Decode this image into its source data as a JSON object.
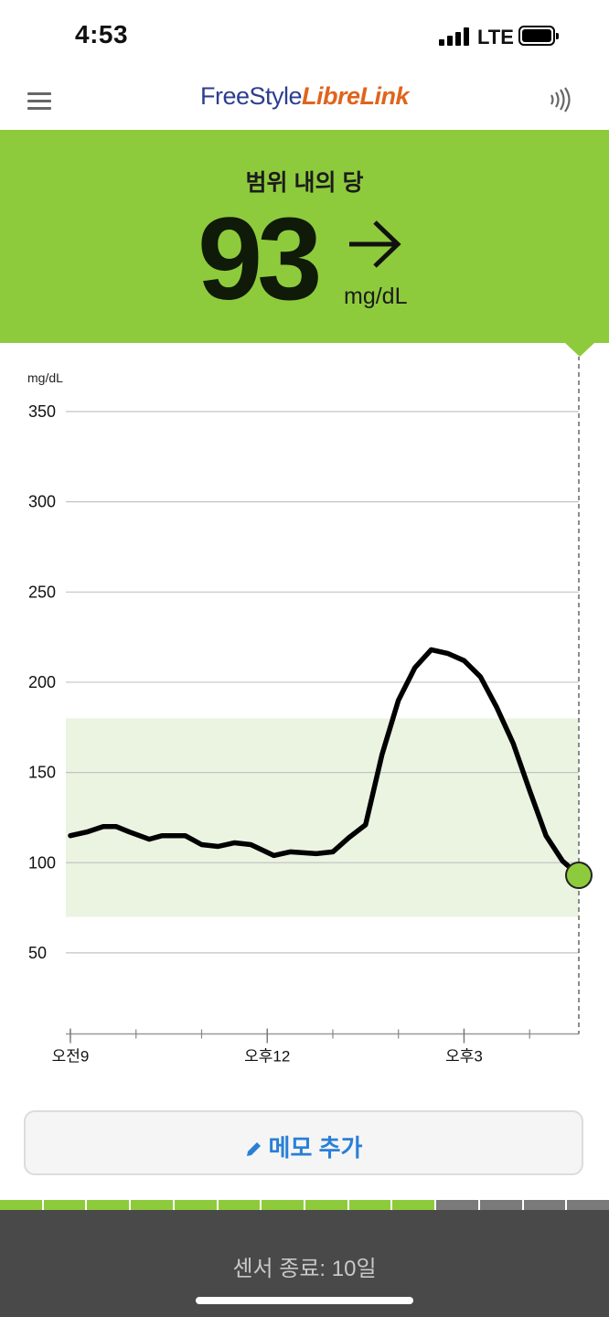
{
  "status_bar": {
    "time": "4:53",
    "network": "LTE"
  },
  "app_bar": {
    "logo_part1": "FreeStyle",
    "logo_part2": "LibreLink"
  },
  "reading": {
    "status_label": "범위 내의 당",
    "value": "93",
    "unit": "mg/dL",
    "trend": "arrow-right-icon",
    "banner_color": "#8ecb3c"
  },
  "chart_data": {
    "type": "line",
    "ylabel": "mg/dL",
    "ylim": [
      0,
      350
    ],
    "yticks": [
      50,
      100,
      150,
      200,
      250,
      300,
      350
    ],
    "target_range": [
      70,
      180
    ],
    "x_tick_labels": [
      {
        "t": 9,
        "label": "오전9"
      },
      {
        "t": 12,
        "label": "오후12"
      },
      {
        "t": 15,
        "label": "오후3"
      }
    ],
    "x": [
      9.0,
      9.25,
      9.5,
      9.7,
      9.9,
      10.2,
      10.4,
      10.75,
      11.0,
      11.25,
      11.5,
      11.75,
      12.1,
      12.35,
      12.75,
      13.0,
      13.25,
      13.5,
      13.75,
      14.0,
      14.25,
      14.5,
      14.75,
      15.0,
      15.25,
      15.5,
      15.75,
      16.0,
      16.25,
      16.5,
      16.75
    ],
    "values": [
      115,
      117,
      120,
      120,
      117,
      113,
      115,
      115,
      110,
      109,
      111,
      110,
      104,
      106,
      105,
      106,
      114,
      121,
      160,
      190,
      208,
      218,
      216,
      212,
      203,
      186,
      166,
      140,
      115,
      101,
      93
    ],
    "current_value": 93,
    "line_color": "#000000",
    "range_color": "#eaf4e1",
    "marker_color": "#8ecb3c"
  },
  "memo_button": {
    "label": "메모 추가"
  },
  "sensor": {
    "footer_text": "센서 종료: 10일",
    "segments_total": 14,
    "segments_filled": 10
  }
}
